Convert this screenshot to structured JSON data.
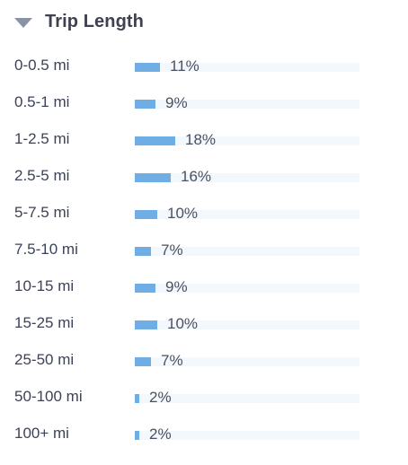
{
  "panel": {
    "title": "Trip Length",
    "caret_icon": "caret-down-icon",
    "bar_color": "#6eaee4",
    "track_color": "#f3f8fc"
  },
  "rows": [
    {
      "label": "0-0.5 mi",
      "percent_label": "11%",
      "value": 11
    },
    {
      "label": "0.5-1 mi",
      "percent_label": "9%",
      "value": 9
    },
    {
      "label": "1-2.5 mi",
      "percent_label": "18%",
      "value": 18
    },
    {
      "label": "2.5-5 mi",
      "percent_label": "16%",
      "value": 16
    },
    {
      "label": "5-7.5 mi",
      "percent_label": "10%",
      "value": 10
    },
    {
      "label": "7.5-10 mi",
      "percent_label": "7%",
      "value": 7
    },
    {
      "label": "10-15 mi",
      "percent_label": "9%",
      "value": 9
    },
    {
      "label": "15-25 mi",
      "percent_label": "10%",
      "value": 10
    },
    {
      "label": "25-50 mi",
      "percent_label": "7%",
      "value": 7
    },
    {
      "label": "50-100 mi",
      "percent_label": "2%",
      "value": 2
    },
    {
      "label": "100+ mi",
      "percent_label": "2%",
      "value": 2
    }
  ]
}
